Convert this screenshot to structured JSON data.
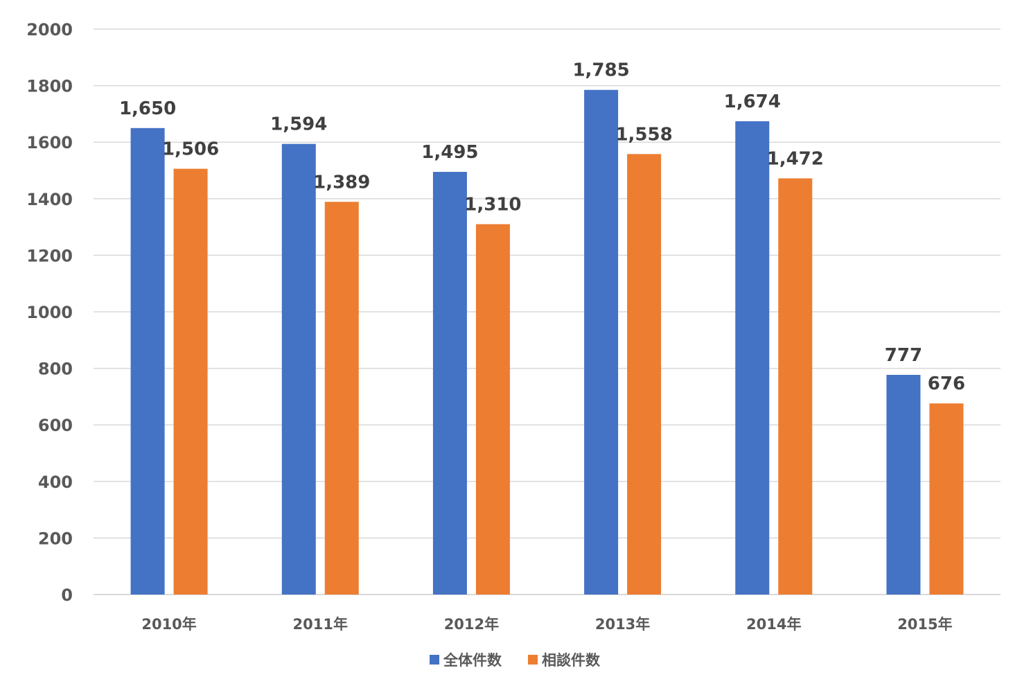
{
  "chart_data": {
    "type": "bar",
    "title": "",
    "xlabel": "",
    "ylabel": "",
    "categories": [
      "2010年",
      "2011年",
      "2012年",
      "2013年",
      "2014年",
      "2015年"
    ],
    "series": [
      {
        "name": "全体件数",
        "color": "#4472C4",
        "values": [
          1650,
          1594,
          1495,
          1785,
          1674,
          777
        ],
        "labels": [
          "1,650",
          "1,594",
          "1,495",
          "1,785",
          "1,674",
          "777"
        ]
      },
      {
        "name": "相談件数",
        "color": "#ED7D31",
        "values": [
          1506,
          1389,
          1310,
          1558,
          1472,
          676
        ],
        "labels": [
          "1,506",
          "1,389",
          "1,310",
          "1,558",
          "1,472",
          "676"
        ]
      }
    ],
    "ylim": [
      0,
      2000
    ],
    "yticks": [
      0,
      200,
      400,
      600,
      800,
      1000,
      1200,
      1400,
      1600,
      1800,
      2000
    ],
    "grid": true,
    "legend_position": "bottom"
  }
}
